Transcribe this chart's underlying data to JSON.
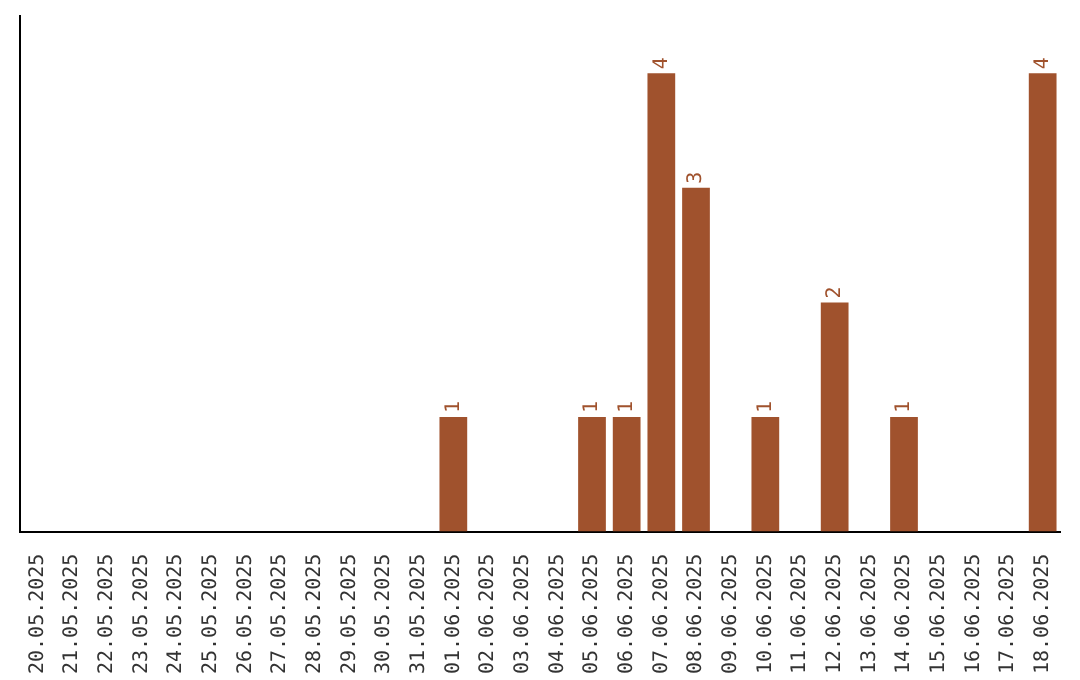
{
  "chart_data": {
    "type": "bar",
    "categories": [
      "20.05.2025",
      "21.05.2025",
      "22.05.2025",
      "23.05.2025",
      "24.05.2025",
      "25.05.2025",
      "26.05.2025",
      "27.05.2025",
      "28.05.2025",
      "29.05.2025",
      "30.05.2025",
      "31.05.2025",
      "01.06.2025",
      "02.06.2025",
      "03.06.2025",
      "04.06.2025",
      "05.06.2025",
      "06.06.2025",
      "07.06.2025",
      "08.06.2025",
      "09.06.2025",
      "10.06.2025",
      "11.06.2025",
      "12.06.2025",
      "13.06.2025",
      "14.06.2025",
      "15.06.2025",
      "16.06.2025",
      "17.06.2025",
      "18.06.2025"
    ],
    "values": [
      null,
      null,
      null,
      null,
      null,
      null,
      null,
      null,
      null,
      null,
      null,
      null,
      1,
      null,
      null,
      null,
      1,
      1,
      4,
      3,
      null,
      1,
      null,
      2,
      null,
      1,
      null,
      null,
      null,
      4
    ],
    "data_labels": true,
    "color": "#a0522d",
    "grid": false,
    "legend": false,
    "tick_labels": "x"
  }
}
